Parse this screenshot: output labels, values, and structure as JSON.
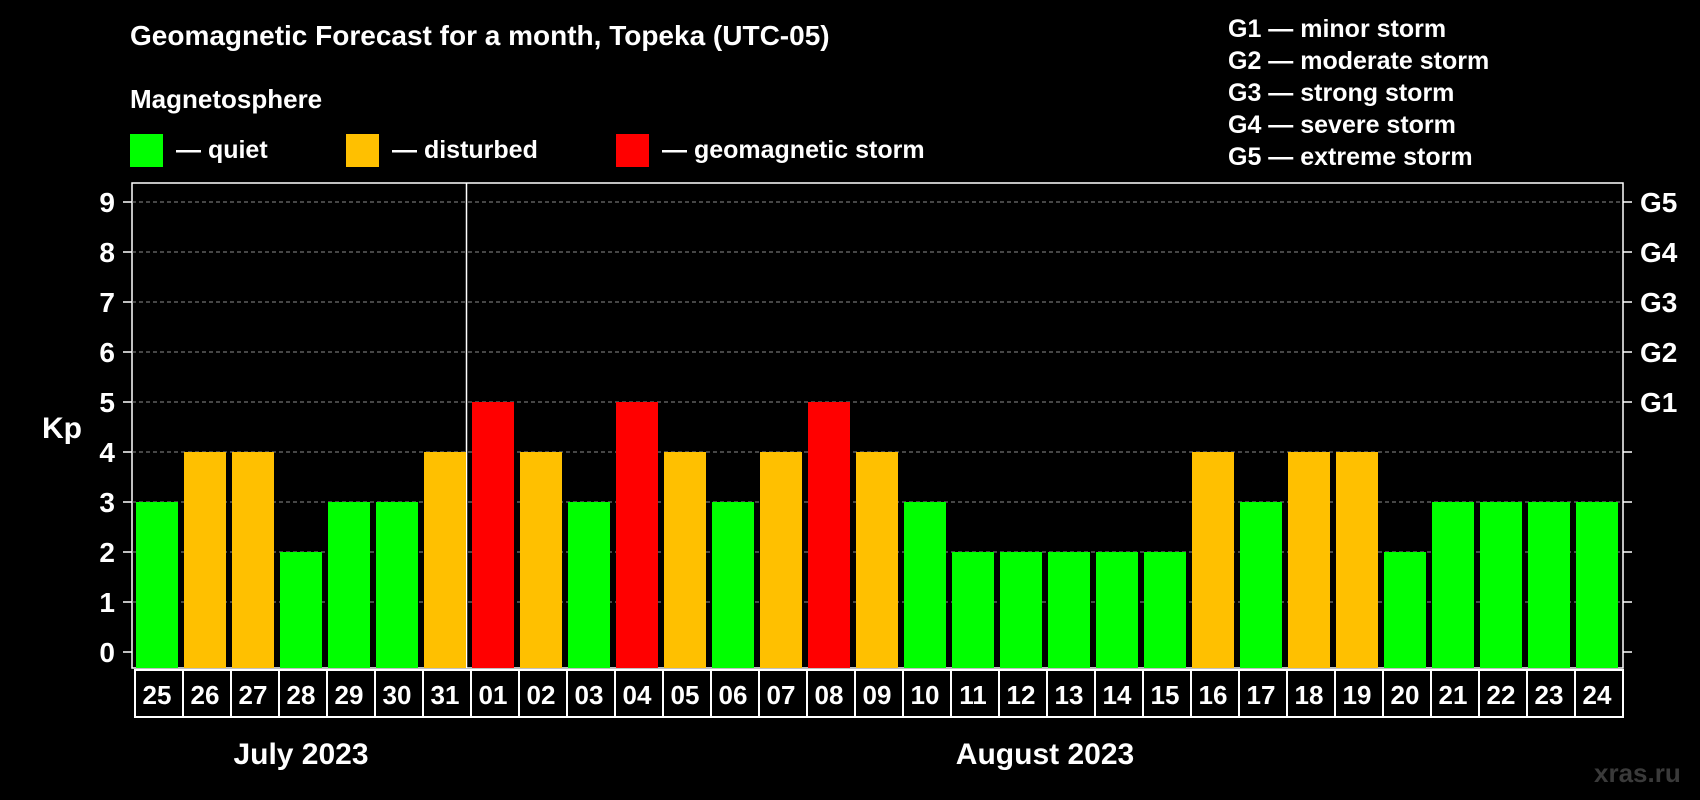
{
  "title": "Geomagnetic Forecast for a month, Topeka (UTC-05)",
  "subtitle": "Magnetosphere",
  "legend": [
    {
      "label": "— quiet",
      "color": "#00ff00"
    },
    {
      "label": "— disturbed",
      "color": "#ffc000"
    },
    {
      "label": "— geomagnetic storm",
      "color": "#ff0000"
    }
  ],
  "g_scale": [
    "G1 — minor storm",
    "G2 — moderate storm",
    "G3 — strong storm",
    "G4 — severe storm",
    "G5 — extreme storm"
  ],
  "watermark": "xras.ru",
  "chart_data": {
    "type": "bar",
    "ylabel": "Kp",
    "ylim": [
      0,
      9
    ],
    "yticks": [
      "0",
      "1",
      "2",
      "3",
      "4",
      "5",
      "6",
      "7",
      "8",
      "9"
    ],
    "right_ticks": [
      {
        "value": 5,
        "label": "G1"
      },
      {
        "value": 6,
        "label": "G2"
      },
      {
        "value": 7,
        "label": "G3"
      },
      {
        "value": 8,
        "label": "G4"
      },
      {
        "value": 9,
        "label": "G5"
      }
    ],
    "grid": true,
    "categories": [
      "25",
      "26",
      "27",
      "28",
      "29",
      "30",
      "31",
      "01",
      "02",
      "03",
      "04",
      "05",
      "06",
      "07",
      "08",
      "09",
      "10",
      "11",
      "12",
      "13",
      "14",
      "15",
      "16",
      "17",
      "18",
      "19",
      "20",
      "21",
      "22",
      "23",
      "24"
    ],
    "values": [
      3,
      4,
      4,
      2,
      3,
      3,
      4,
      5,
      4,
      3,
      5,
      4,
      3,
      4,
      5,
      4,
      3,
      2,
      2,
      2,
      2,
      2,
      4,
      3,
      4,
      4,
      2,
      3,
      3,
      3,
      3
    ],
    "months": [
      {
        "label": "July 2023",
        "start": 0,
        "end": 6
      },
      {
        "label": "August 2023",
        "start": 7,
        "end": 30
      }
    ]
  }
}
